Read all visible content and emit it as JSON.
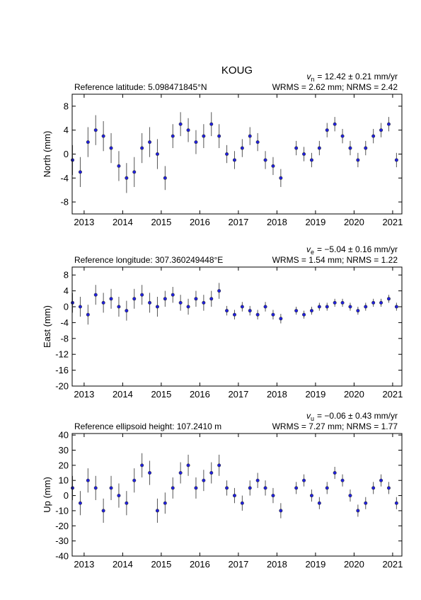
{
  "chart_data": [
    {
      "type": "scatter",
      "title": "KOUG",
      "reference": "Reference latitude: 5.098471845°N",
      "velocity": {
        "symbol": "v",
        "subscript": "n",
        "text": "= 12.42 ± 0.21 mm/yr"
      },
      "wrms": "WRMS = 2.62 mm; NRMS = 2.42",
      "ylabel": "North (mm)",
      "color": "#1f1fe0",
      "x": [
        2012.7,
        2012.9,
        2013.1,
        2013.3,
        2013.5,
        2013.7,
        2013.9,
        2014.1,
        2014.3,
        2014.5,
        2014.7,
        2014.9,
        2015.1,
        2015.3,
        2015.5,
        2015.7,
        2015.9,
        2016.1,
        2016.3,
        2016.5,
        2016.7,
        2016.9,
        2017.1,
        2017.3,
        2017.5,
        2017.7,
        2017.9,
        2018.1,
        2018.5,
        2018.7,
        2018.9,
        2019.1,
        2019.3,
        2019.5,
        2019.7,
        2019.9,
        2020.1,
        2020.3,
        2020.5,
        2020.7,
        2020.9,
        2021.1
      ],
      "values": [
        -1,
        -3,
        2,
        4,
        3,
        1,
        -2,
        -4,
        -3,
        1,
        2,
        0,
        -4,
        3,
        5,
        4,
        2,
        3,
        5,
        3,
        0,
        -1,
        1,
        3,
        2,
        -1,
        -2,
        -4,
        1,
        0,
        -1,
        1,
        4,
        5,
        3,
        1,
        -1,
        1,
        3,
        4,
        5,
        -1
      ],
      "errors": [
        2.5,
        2.5,
        2.5,
        2.5,
        2.5,
        2.5,
        2.5,
        2.5,
        2.5,
        2.5,
        2.5,
        2.5,
        2,
        2,
        2,
        2,
        2,
        2,
        2,
        2,
        1.5,
        1.5,
        1.5,
        1.5,
        1.5,
        1.5,
        1.5,
        1.5,
        1.2,
        1.2,
        1.2,
        1.2,
        1.2,
        1.2,
        1.2,
        1.2,
        1.2,
        1.2,
        1.2,
        1.2,
        1.2,
        1.2
      ],
      "xlim": [
        2012.69,
        2021.24
      ],
      "ylim": [
        -10,
        10
      ],
      "xticks": [
        2013,
        2014,
        2015,
        2016,
        2017,
        2018,
        2019,
        2020,
        2021
      ],
      "yticks": [
        -8,
        -4,
        0,
        4,
        8
      ]
    },
    {
      "type": "scatter",
      "reference": "Reference longitude: 307.360249448°E",
      "velocity": {
        "symbol": "v",
        "subscript": "e",
        "text": "= −5.04 ± 0.16 mm/yr"
      },
      "wrms": "WRMS = 1.54 mm; NRMS = 1.22",
      "ylabel": "East (mm)",
      "color": "#1f1fe0",
      "x": [
        2012.7,
        2012.9,
        2013.1,
        2013.3,
        2013.5,
        2013.7,
        2013.9,
        2014.1,
        2014.3,
        2014.5,
        2014.7,
        2014.9,
        2015.1,
        2015.3,
        2015.5,
        2015.7,
        2015.9,
        2016.1,
        2016.3,
        2016.5,
        2016.7,
        2016.9,
        2017.1,
        2017.3,
        2017.5,
        2017.7,
        2017.9,
        2018.1,
        2018.5,
        2018.7,
        2018.9,
        2019.1,
        2019.3,
        2019.5,
        2019.7,
        2019.9,
        2020.1,
        2020.3,
        2020.5,
        2020.7,
        2020.9,
        2021.1
      ],
      "values": [
        1,
        0,
        -2,
        3,
        1,
        2,
        0,
        -1,
        2,
        3,
        1,
        0,
        2,
        3,
        1,
        0,
        2,
        1,
        2,
        4,
        -1,
        -2,
        0,
        -1,
        -2,
        0,
        -2,
        -3,
        -1,
        -2,
        -1,
        0,
        0,
        1,
        1,
        0,
        -1,
        0,
        1,
        1,
        2,
        0
      ],
      "errors": [
        2.5,
        2.5,
        2.5,
        2.5,
        2.5,
        2.5,
        2.5,
        2.5,
        2.5,
        2.5,
        2.5,
        2.5,
        2,
        2,
        2,
        2,
        2,
        2,
        2,
        2,
        1.2,
        1.2,
        1.2,
        1.2,
        1.2,
        1.2,
        1.2,
        1.2,
        1,
        1,
        1,
        1,
        1,
        1,
        1,
        1,
        1,
        1,
        1,
        1,
        1,
        1
      ],
      "xlim": [
        2012.69,
        2021.24
      ],
      "ylim": [
        -20,
        10
      ],
      "xticks": [
        2013,
        2014,
        2015,
        2016,
        2017,
        2018,
        2019,
        2020,
        2021
      ],
      "yticks": [
        -20,
        -16,
        -12,
        -8,
        -4,
        0,
        4,
        8
      ]
    },
    {
      "type": "scatter",
      "reference": "Reference ellipsoid height: 107.2410 m",
      "velocity": {
        "symbol": "v",
        "subscript": "u",
        "text": "= −0.06 ± 0.43 mm/yr"
      },
      "wrms": "WRMS = 7.27 mm; NRMS = 1.77",
      "ylabel": "Up (mm)",
      "color": "#1f1fe0",
      "x": [
        2012.7,
        2012.9,
        2013.1,
        2013.3,
        2013.5,
        2013.7,
        2013.9,
        2014.1,
        2014.3,
        2014.5,
        2014.7,
        2014.9,
        2015.1,
        2015.3,
        2015.5,
        2015.7,
        2015.9,
        2016.1,
        2016.3,
        2016.5,
        2016.7,
        2016.9,
        2017.1,
        2017.3,
        2017.5,
        2017.7,
        2017.9,
        2018.1,
        2018.5,
        2018.7,
        2018.9,
        2019.1,
        2019.3,
        2019.5,
        2019.7,
        2019.9,
        2020.1,
        2020.3,
        2020.5,
        2020.7,
        2020.9,
        2021.1
      ],
      "values": [
        5,
        -5,
        10,
        5,
        -10,
        5,
        0,
        -5,
        10,
        20,
        15,
        -10,
        -5,
        5,
        15,
        20,
        5,
        10,
        15,
        20,
        5,
        0,
        -5,
        5,
        10,
        5,
        0,
        -10,
        5,
        10,
        0,
        -5,
        5,
        15,
        10,
        0,
        -10,
        -5,
        5,
        10,
        5,
        -5
      ],
      "errors": [
        8,
        8,
        8,
        8,
        8,
        8,
        8,
        8,
        8,
        8,
        8,
        8,
        7,
        7,
        7,
        7,
        7,
        7,
        7,
        7,
        5,
        5,
        5,
        5,
        5,
        5,
        5,
        5,
        4,
        4,
        4,
        4,
        4,
        4,
        4,
        4,
        4,
        4,
        4,
        4,
        4,
        4
      ],
      "xlim": [
        2012.69,
        2021.24
      ],
      "ylim": [
        -40,
        41
      ],
      "xticks": [
        2013,
        2014,
        2015,
        2016,
        2017,
        2018,
        2019,
        2020,
        2021
      ],
      "yticks": [
        -40,
        -30,
        -20,
        -10,
        0,
        10,
        20,
        30,
        40
      ]
    }
  ]
}
